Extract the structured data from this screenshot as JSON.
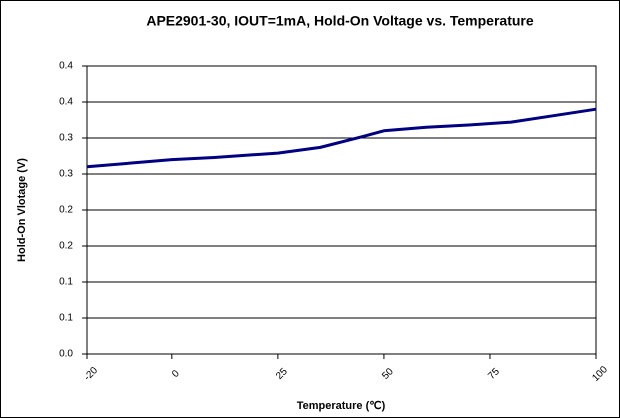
{
  "chart_data": {
    "type": "line",
    "title": "APE2901-30, IOUT=1mA, Hold-On Voltage vs. Temperature",
    "x_label": "Temperature (℃)",
    "y_label": "Hold-On Vlotage (V)",
    "x": [
      -20,
      0,
      10,
      25,
      35,
      45,
      50,
      60,
      70,
      80,
      90,
      100
    ],
    "series": [
      {
        "name": "Hold-On Voltage",
        "color": "#000080",
        "values": [
          0.26,
          0.27,
          0.273,
          0.279,
          0.287,
          0.302,
          0.31,
          0.315,
          0.318,
          0.322,
          0.331,
          0.34
        ]
      }
    ],
    "xlim": [
      -20,
      100
    ],
    "xticks": [
      -20,
      0,
      25,
      50,
      75,
      100
    ],
    "ylim": [
      0,
      0.4
    ],
    "yticks": [
      {
        "value": 0,
        "label": "0.0"
      },
      {
        "value": 0.05,
        "label": "0.1"
      },
      {
        "value": 0.1,
        "label": "0.1"
      },
      {
        "value": 0.15,
        "label": "0.2"
      },
      {
        "value": 0.2,
        "label": "0.2"
      },
      {
        "value": 0.25,
        "label": "0.3"
      },
      {
        "value": 0.3,
        "label": "0.3"
      },
      {
        "value": 0.35,
        "label": "0.4"
      },
      {
        "value": 0.4,
        "label": "0.4"
      }
    ],
    "grid": true
  }
}
